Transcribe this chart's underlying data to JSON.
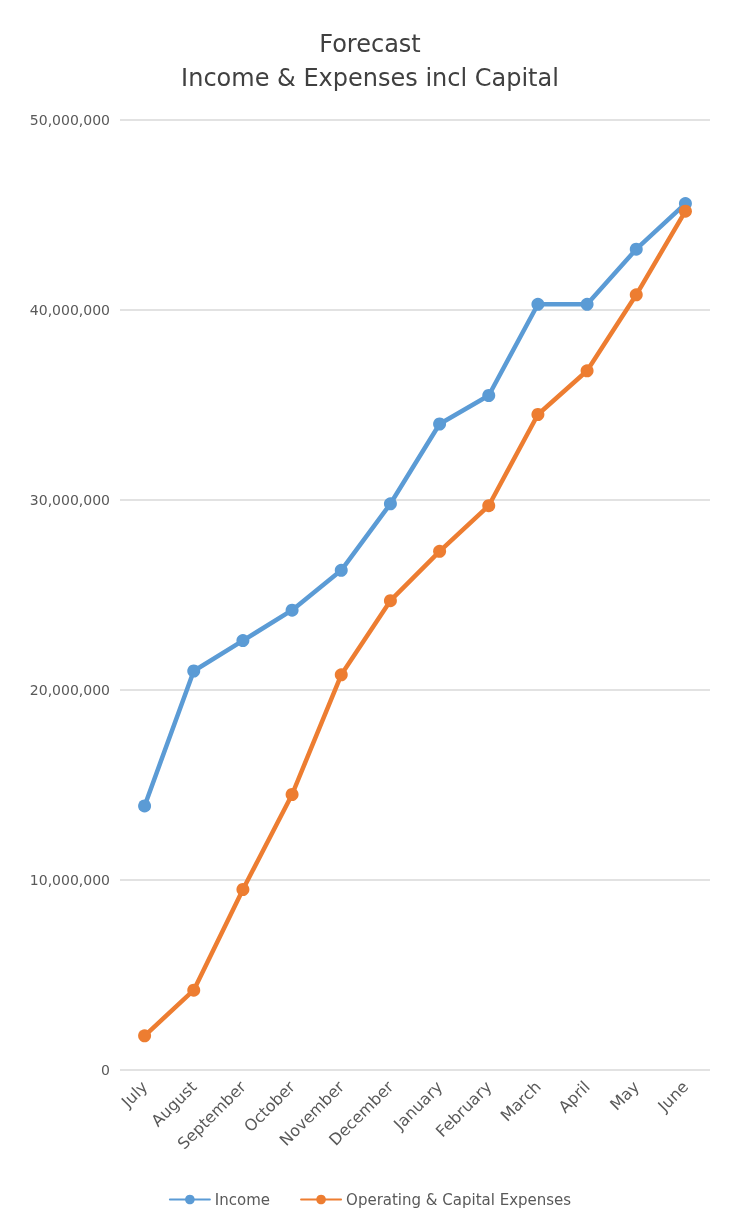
{
  "chart_data": {
    "type": "line",
    "title": "Forecast\nIncome & Expenses incl Capital",
    "categories": [
      "July",
      "August",
      "September",
      "October",
      "November",
      "December",
      "January",
      "February",
      "March",
      "April",
      "May",
      "June"
    ],
    "series": [
      {
        "name": "Income",
        "color": "#5b9bd5",
        "values": [
          13900000,
          21000000,
          22600000,
          24200000,
          26300000,
          29800000,
          34000000,
          35500000,
          40300000,
          40300000,
          43200000,
          45600000
        ]
      },
      {
        "name": "Operating & Capital Expenses",
        "color": "#ed7d31",
        "values": [
          1800000,
          4200000,
          9500000,
          14500000,
          20800000,
          24700000,
          27300000,
          29700000,
          34500000,
          36800000,
          40800000,
          45200000
        ]
      }
    ],
    "ylim": [
      0,
      50000000
    ],
    "yticks": [
      {
        "value": 0,
        "label": "0"
      },
      {
        "value": 10000000,
        "label": "10,000,000"
      },
      {
        "value": 20000000,
        "label": "20,000,000"
      },
      {
        "value": 30000000,
        "label": "30,000,000"
      },
      {
        "value": 40000000,
        "label": "40,000,000"
      },
      {
        "value": 50000000,
        "label": "50,000,000"
      }
    ],
    "grid": "y",
    "legend": "bottom",
    "marker": "circle",
    "line_style": "solid"
  }
}
